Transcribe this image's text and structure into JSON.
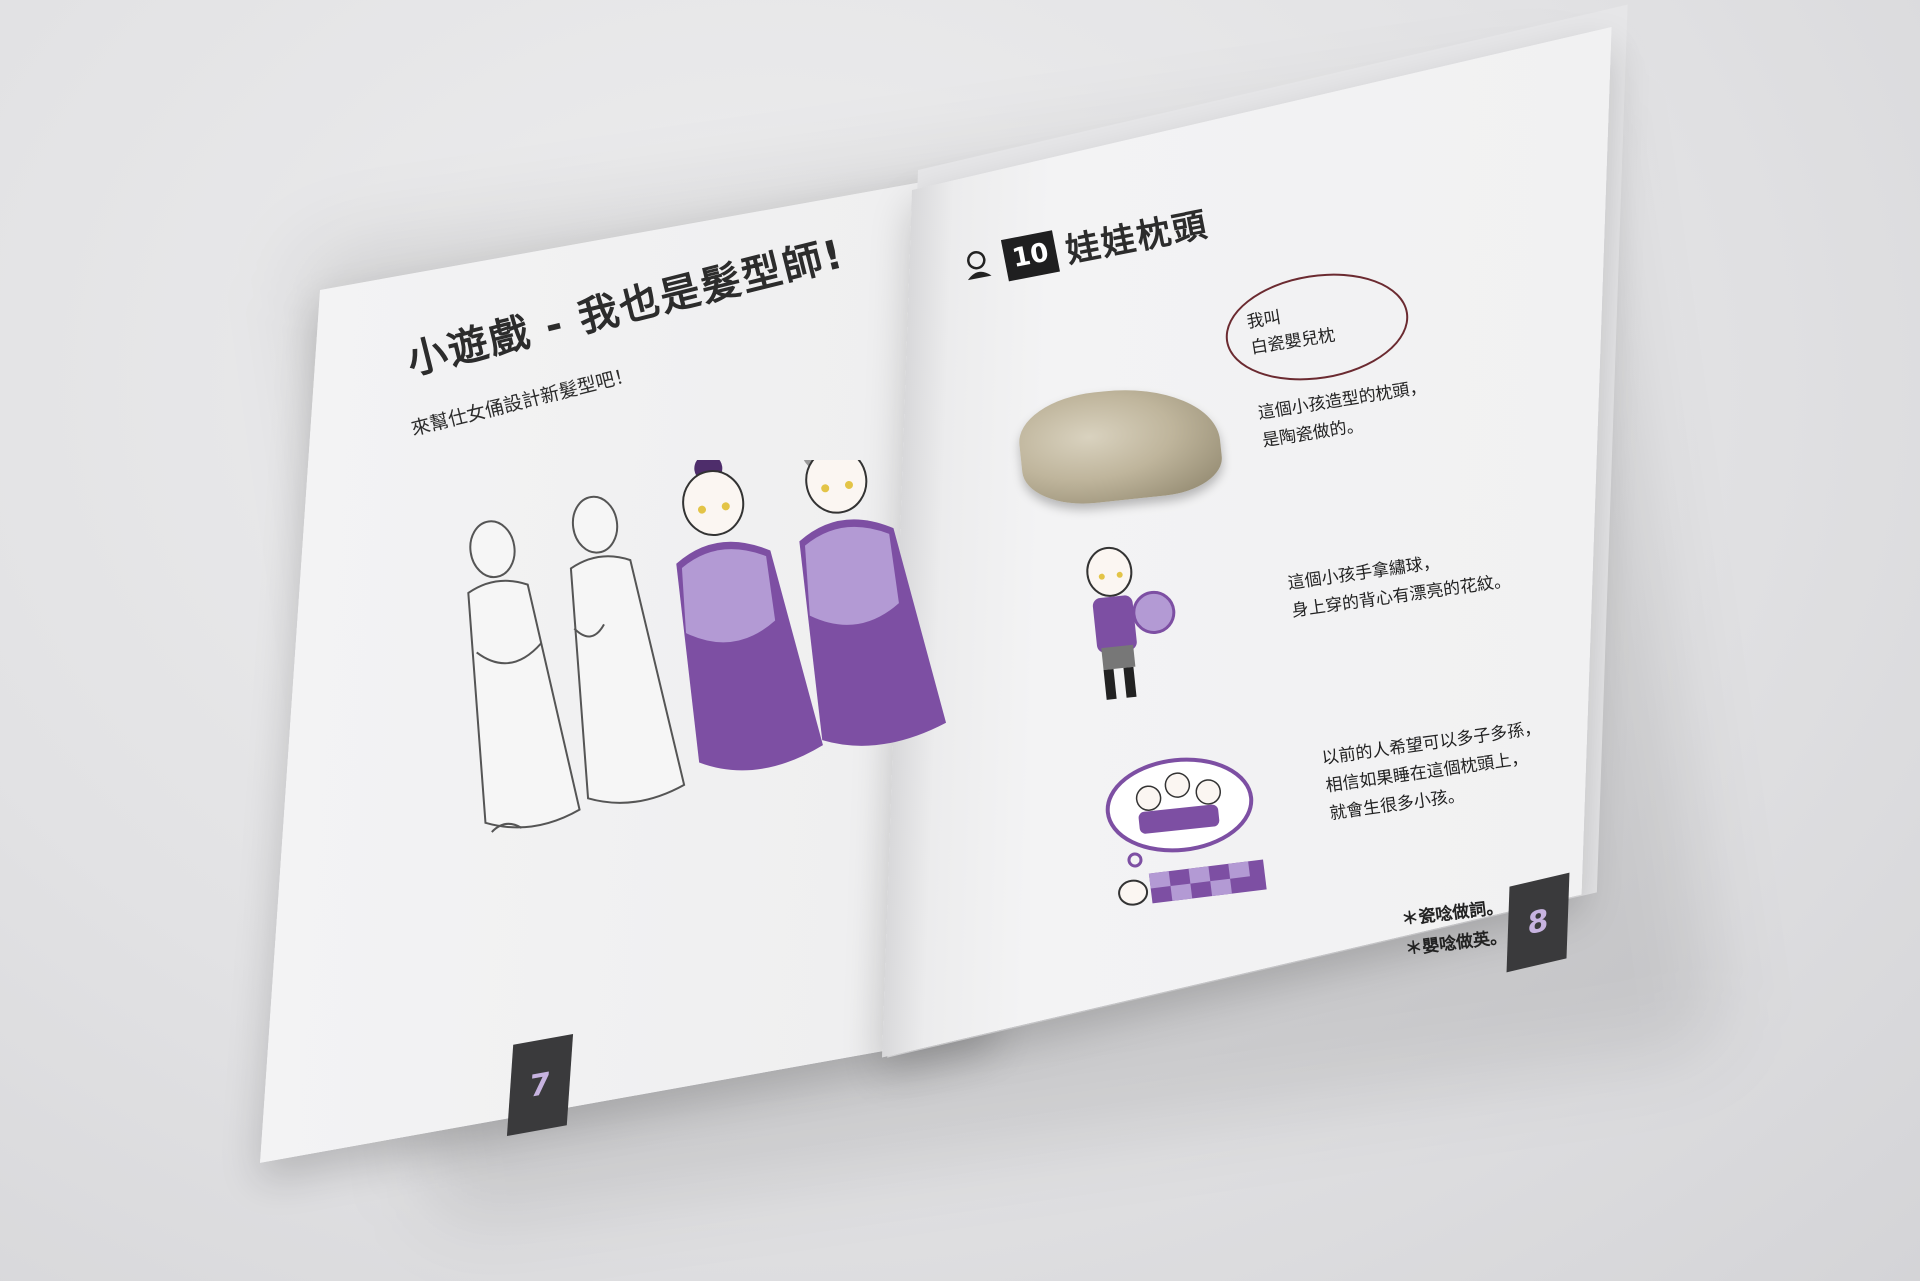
{
  "left_page": {
    "title": "小遊戲 - 我也是髮型師!",
    "subtitle": "來幫仕女俑設計新髮型吧！",
    "page_number": "7"
  },
  "right_page": {
    "section_number": "10",
    "section_title": "娃娃枕頭",
    "bubble_line1": "我叫",
    "bubble_line2": "白瓷嬰兒枕",
    "text1_line1": "這個小孩造型的枕頭，",
    "text1_line2": "是陶瓷做的。",
    "text2_line1": "這個小孩手拿繡球，",
    "text2_line2": "身上穿的背心有漂亮的花紋。",
    "text3_line1": "以前的人希望可以多子多孫，",
    "text3_line2": "相信如果睡在這個枕頭上，",
    "text3_line3": "就會生很多小孩。",
    "note1": "＊瓷唸做詞。",
    "note2": "＊嬰唸做英。",
    "page_number": "8"
  },
  "colors": {
    "accent_purple": "#7d4fa3",
    "light_purple": "#b39ad4",
    "dark_box": "#3a3a3c"
  },
  "icons": [
    "baby-doll-icon",
    "figure-outline-icon",
    "lady-figure-icon",
    "child-figure-icon",
    "dream-bubble-icon",
    "sleeping-person-icon"
  ]
}
